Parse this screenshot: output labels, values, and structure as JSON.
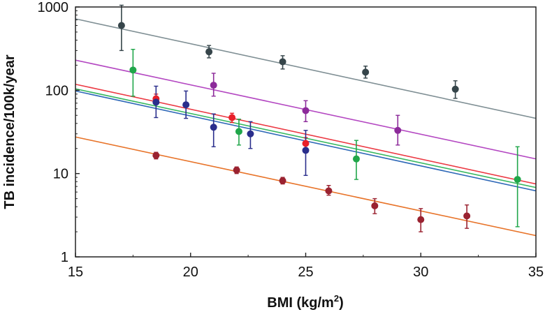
{
  "chart_data": {
    "type": "scatter",
    "title": "",
    "xlabel": "BMI (kg/m",
    "xlabel_sup": "2",
    "xlabel_close": ")",
    "ylabel": "TB incidence/100k/year",
    "xlim": [
      15,
      35
    ],
    "ylim": [
      1,
      1000
    ],
    "yscale": "log",
    "grid": false,
    "x_ticks": [
      15,
      20,
      25,
      30,
      35
    ],
    "x_tick_labels": [
      "15",
      "20",
      "25",
      "30",
      "35"
    ],
    "y_ticks": [
      1,
      10,
      100,
      1000
    ],
    "y_tick_labels": [
      "1",
      "10",
      "100",
      "1000"
    ],
    "series": [
      {
        "color": "#36454a",
        "line_color": "#7f8f94",
        "fit": [
          [
            15,
            720
          ],
          [
            35,
            46
          ]
        ],
        "points": [
          {
            "x": 17.0,
            "y": 600,
            "lo": 300,
            "hi": 1050
          },
          {
            "x": 20.8,
            "y": 290,
            "lo": 245,
            "hi": 345
          },
          {
            "x": 24.0,
            "y": 220,
            "lo": 180,
            "hi": 260
          },
          {
            "x": 27.6,
            "y": 165,
            "lo": 140,
            "hi": 195
          },
          {
            "x": 31.5,
            "y": 103,
            "lo": 80,
            "hi": 130
          }
        ]
      },
      {
        "color": "#8c2a9a",
        "line_color": "#b448c2",
        "fit": [
          [
            15,
            230
          ],
          [
            35,
            15
          ]
        ],
        "points": [
          {
            "x": 21.0,
            "y": 115,
            "lo": 85,
            "hi": 160
          },
          {
            "x": 25.0,
            "y": 57,
            "lo": 42,
            "hi": 75
          },
          {
            "x": 29.0,
            "y": 33,
            "lo": 22,
            "hi": 50
          }
        ]
      },
      {
        "color": "#e8202a",
        "line_color": "#ec3a44",
        "fit": [
          [
            15,
            118
          ],
          [
            35,
            7.5
          ]
        ],
        "points": [
          {
            "x": 18.5,
            "y": 79,
            "lo": 68,
            "hi": 90
          },
          {
            "x": 21.8,
            "y": 47,
            "lo": 41,
            "hi": 53
          },
          {
            "x": 25.0,
            "y": 23,
            "lo": 19,
            "hi": 27
          }
        ]
      },
      {
        "color": "#20a64a",
        "line_color": "#38b860",
        "fit": [
          [
            15,
            104
          ],
          [
            35,
            6.8
          ]
        ],
        "points": [
          {
            "x": 17.5,
            "y": 175,
            "lo": 85,
            "hi": 310
          },
          {
            "x": 22.1,
            "y": 32,
            "lo": 22,
            "hi": 45
          },
          {
            "x": 27.2,
            "y": 15,
            "lo": 8.5,
            "hi": 25
          },
          {
            "x": 34.2,
            "y": 8.5,
            "lo": 2.3,
            "hi": 21
          }
        ]
      },
      {
        "color": "#2a2e8c",
        "line_color": "#2f69b8",
        "fit": [
          [
            15,
            98
          ],
          [
            35,
            6.2
          ]
        ],
        "points": [
          {
            "x": 18.5,
            "y": 72,
            "lo": 47,
            "hi": 112
          },
          {
            "x": 19.8,
            "y": 67,
            "lo": 46,
            "hi": 98
          },
          {
            "x": 21.0,
            "y": 36,
            "lo": 21,
            "hi": 52
          },
          {
            "x": 22.6,
            "y": 30,
            "lo": 20,
            "hi": 42
          },
          {
            "x": 25.0,
            "y": 19,
            "lo": 9.5,
            "hi": 33
          }
        ]
      },
      {
        "color": "#9a2230",
        "line_color": "#e8742a",
        "fit": [
          [
            15,
            27.5
          ],
          [
            35,
            1.8
          ]
        ],
        "points": [
          {
            "x": 18.5,
            "y": 16.5,
            "lo": 15,
            "hi": 18
          },
          {
            "x": 22.0,
            "y": 11,
            "lo": 10,
            "hi": 12
          },
          {
            "x": 24.0,
            "y": 8.2,
            "lo": 7.5,
            "hi": 9
          },
          {
            "x": 26.0,
            "y": 6.2,
            "lo": 5.5,
            "hi": 7.2
          },
          {
            "x": 28.0,
            "y": 4.1,
            "lo": 3.3,
            "hi": 5.0
          },
          {
            "x": 30.0,
            "y": 2.8,
            "lo": 2.0,
            "hi": 3.8
          },
          {
            "x": 32.0,
            "y": 3.1,
            "lo": 2.2,
            "hi": 4.2
          }
        ]
      }
    ]
  }
}
